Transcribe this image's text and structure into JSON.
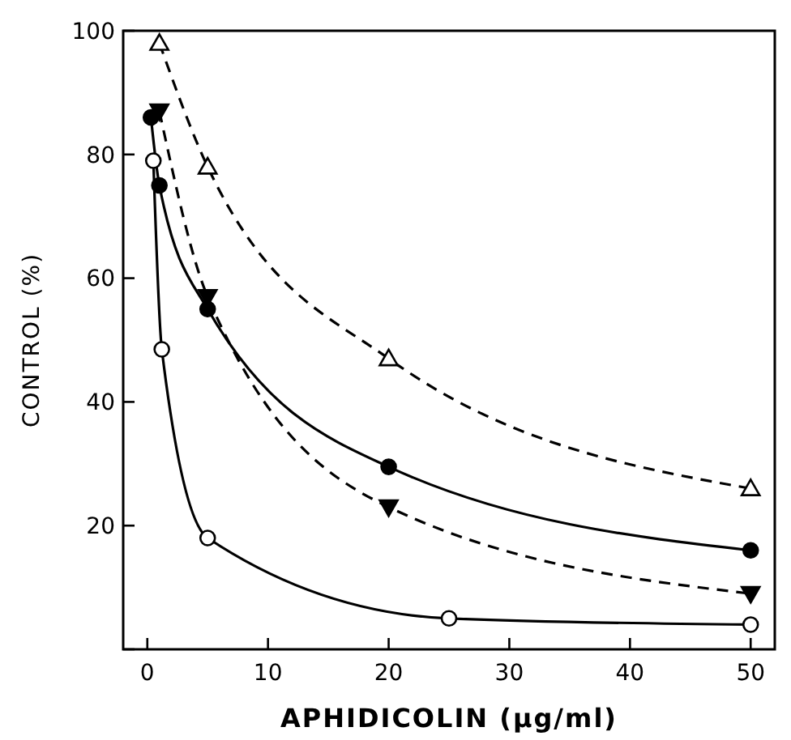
{
  "chart_data": {
    "type": "line",
    "xlabel": "APHIDICOLIN (µg/ml)",
    "ylabel": "CONTROL (%)",
    "xlim": [
      -2,
      52
    ],
    "ylim": [
      0,
      100
    ],
    "xticks": [
      0,
      10,
      20,
      30,
      40,
      50
    ],
    "yticks": [
      {
        "value": 0,
        "label": null
      },
      20,
      40,
      60,
      80,
      100
    ],
    "series": [
      {
        "color": "#000000",
        "marker": "triangle-open",
        "line_style": "dashed",
        "x": [
          1,
          5,
          20,
          50
        ],
        "values": [
          98,
          78,
          47,
          26
        ]
      },
      {
        "color": "#000000",
        "marker": "circle",
        "line_style": "solid",
        "x": [
          0.3,
          1,
          5,
          20,
          50
        ],
        "values": [
          86,
          75,
          55,
          29.5,
          16
        ]
      },
      {
        "color": "#000000",
        "marker": "triangle-down",
        "line_style": "dashed",
        "x": [
          1,
          5,
          20,
          50
        ],
        "values": [
          87,
          57,
          23,
          9
        ]
      },
      {
        "color": "#000000",
        "marker": "circle-open",
        "line_style": "solid",
        "x": [
          0.5,
          1.2,
          5,
          25,
          50
        ],
        "values": [
          79,
          48.5,
          18,
          5,
          4
        ]
      }
    ]
  }
}
